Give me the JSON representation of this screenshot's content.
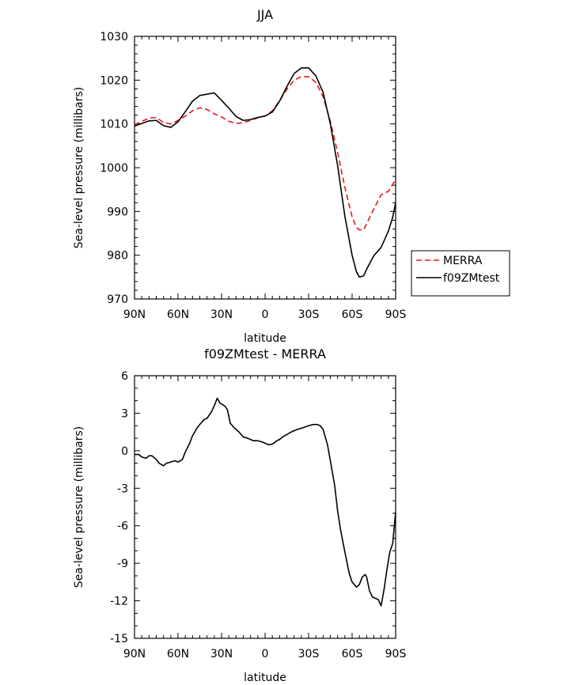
{
  "chart_data": [
    {
      "type": "line",
      "title": "JJA",
      "xlabel": "latitude",
      "ylabel": "Sea-level pressure (millibars)",
      "xlim": [
        90,
        -90
      ],
      "ylim": [
        970,
        1030
      ],
      "xticks": [
        {
          "value": 90,
          "label": "90N"
        },
        {
          "value": 60,
          "label": "60N"
        },
        {
          "value": 30,
          "label": "30N"
        },
        {
          "value": 0,
          "label": "0"
        },
        {
          "value": -30,
          "label": "30S"
        },
        {
          "value": -60,
          "label": "60S"
        },
        {
          "value": -90,
          "label": "90S"
        }
      ],
      "yticks": [
        970,
        980,
        990,
        1000,
        1010,
        1020,
        1030
      ],
      "legend_position": "right",
      "series": [
        {
          "name": "MERRA",
          "color": "#e31a1c",
          "dashed": true,
          "x": [
            90,
            85,
            80,
            75,
            70,
            65,
            60,
            55,
            50,
            45,
            40,
            35,
            30,
            25,
            20,
            15,
            10,
            5,
            0,
            -5,
            -10,
            -15,
            -20,
            -25,
            -30,
            -35,
            -40,
            -45,
            -50,
            -55,
            -60,
            -63,
            -65,
            -68,
            -70,
            -75,
            -80,
            -85,
            -90
          ],
          "values": [
            1009.8,
            1010.6,
            1011.3,
            1011.5,
            1010.3,
            1010.0,
            1010.8,
            1011.8,
            1013.0,
            1013.7,
            1013.3,
            1012.3,
            1011.6,
            1010.6,
            1010.1,
            1010.3,
            1010.8,
            1011.4,
            1011.8,
            1013.0,
            1015.3,
            1017.9,
            1020.0,
            1020.8,
            1020.8,
            1019.5,
            1016.2,
            1010.6,
            1003.5,
            995.5,
            988.8,
            986.3,
            985.8,
            985.8,
            987.2,
            990.6,
            993.8,
            994.6,
            997.3
          ]
        },
        {
          "name": "f09ZMtest",
          "color": "#000000",
          "dashed": false,
          "x": [
            90,
            85,
            80,
            75,
            70,
            65,
            60,
            55,
            50,
            45,
            40,
            35,
            30,
            25,
            20,
            15,
            10,
            5,
            0,
            -5,
            -10,
            -15,
            -20,
            -25,
            -30,
            -35,
            -40,
            -45,
            -50,
            -55,
            -60,
            -63,
            -65,
            -68,
            -70,
            -75,
            -80,
            -85,
            -88,
            -90
          ],
          "values": [
            1009.5,
            1010.1,
            1010.7,
            1010.8,
            1009.6,
            1009.2,
            1010.5,
            1012.8,
            1015.2,
            1016.5,
            1016.8,
            1017.1,
            1015.4,
            1013.6,
            1011.7,
            1010.8,
            1011.0,
            1011.5,
            1011.8,
            1012.7,
            1015.2,
            1018.5,
            1021.5,
            1022.8,
            1022.8,
            1021.0,
            1017.2,
            1010.0,
            1000.5,
            988.9,
            980.0,
            976.2,
            975.0,
            975.3,
            976.8,
            979.9,
            981.8,
            985.5,
            988.7,
            992.0
          ]
        }
      ]
    },
    {
      "type": "line",
      "title": "f09ZMtest - MERRA",
      "xlabel": "latitude",
      "ylabel": "Sea-level pressure (millibars)",
      "xlim": [
        90,
        -90
      ],
      "ylim": [
        -15,
        6
      ],
      "xticks": [
        {
          "value": 90,
          "label": "90N"
        },
        {
          "value": 60,
          "label": "60N"
        },
        {
          "value": 30,
          "label": "30N"
        },
        {
          "value": 0,
          "label": "0"
        },
        {
          "value": -30,
          "label": "30S"
        },
        {
          "value": -60,
          "label": "60S"
        },
        {
          "value": -90,
          "label": "90S"
        }
      ],
      "yticks": [
        -15,
        -12,
        -9,
        -6,
        -3,
        0,
        3,
        6
      ],
      "series": [
        {
          "color": "#000000",
          "dashed": false,
          "x": [
            90,
            87,
            85,
            82,
            80,
            78,
            75,
            73,
            70,
            68,
            65,
            62,
            60,
            57,
            55,
            52,
            50,
            47,
            45,
            42,
            40,
            37,
            35,
            33,
            31,
            28,
            26,
            24,
            21,
            18,
            15,
            12,
            10,
            8,
            5,
            2,
            0,
            -2,
            -4,
            -6,
            -8,
            -10,
            -12,
            -15,
            -18,
            -22,
            -25,
            -30,
            -33,
            -36,
            -38,
            -40,
            -43,
            -45,
            -48,
            -50,
            -52,
            -55,
            -58,
            -60,
            -63,
            -65,
            -67,
            -69,
            -70,
            -72,
            -74,
            -76,
            -78,
            -80,
            -82,
            -84,
            -86,
            -88,
            -90
          ],
          "values": [
            -0.3,
            -0.3,
            -0.5,
            -0.6,
            -0.4,
            -0.4,
            -0.7,
            -1.0,
            -1.2,
            -1.0,
            -0.9,
            -0.8,
            -0.9,
            -0.7,
            -0.1,
            0.6,
            1.2,
            1.8,
            2.1,
            2.5,
            2.6,
            3.1,
            3.6,
            4.2,
            3.8,
            3.6,
            3.3,
            2.2,
            1.8,
            1.5,
            1.1,
            1.0,
            0.9,
            0.8,
            0.8,
            0.7,
            0.6,
            0.5,
            0.5,
            0.6,
            0.8,
            0.9,
            1.1,
            1.3,
            1.5,
            1.7,
            1.8,
            2.0,
            2.1,
            2.1,
            2.0,
            1.7,
            0.5,
            -0.8,
            -2.8,
            -4.8,
            -6.3,
            -8.1,
            -9.8,
            -10.5,
            -10.9,
            -10.7,
            -10.1,
            -9.9,
            -10.1,
            -11.2,
            -11.7,
            -11.8,
            -11.9,
            -12.4,
            -11.1,
            -9.5,
            -8.1,
            -7.4,
            -4.9
          ]
        }
      ]
    }
  ]
}
